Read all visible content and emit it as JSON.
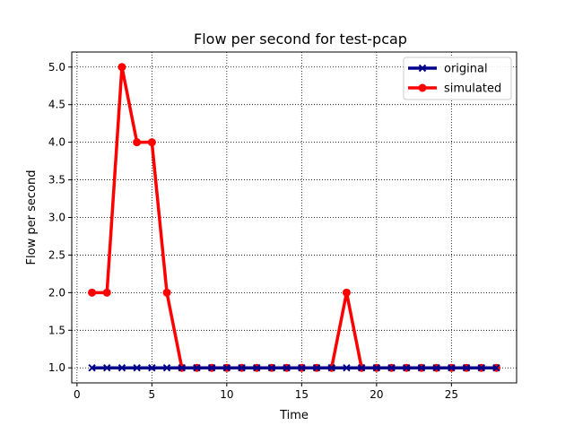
{
  "chart_data": {
    "type": "line",
    "title": "Flow per second for test-pcap",
    "xlabel": "Time",
    "ylabel": "Flow per second",
    "xlim": [
      -0.35,
      29.35
    ],
    "ylim": [
      0.8,
      5.2
    ],
    "xticks": [
      0,
      5,
      10,
      15,
      20,
      25
    ],
    "yticks": [
      1.0,
      1.5,
      2.0,
      2.5,
      3.0,
      3.5,
      4.0,
      4.5,
      5.0
    ],
    "grid": true,
    "legend_position": "top-right",
    "x": [
      1,
      2,
      3,
      4,
      5,
      6,
      7,
      8,
      9,
      10,
      11,
      12,
      13,
      14,
      15,
      16,
      17,
      18,
      19,
      20,
      21,
      22,
      23,
      24,
      25,
      26,
      27,
      28
    ],
    "series": [
      {
        "name": "original",
        "color": "#00008b",
        "marker": "x",
        "values": [
          1,
          1,
          1,
          1,
          1,
          1,
          1,
          1,
          1,
          1,
          1,
          1,
          1,
          1,
          1,
          1,
          1,
          1,
          1,
          1,
          1,
          1,
          1,
          1,
          1,
          1,
          1,
          1
        ]
      },
      {
        "name": "simulated",
        "color": "#ff0000",
        "marker": "o",
        "values": [
          2,
          2,
          5,
          4,
          4,
          2,
          1,
          1,
          1,
          1,
          1,
          1,
          1,
          1,
          1,
          1,
          1,
          2,
          1,
          1,
          1,
          1,
          1,
          1,
          1,
          1,
          1,
          1
        ]
      }
    ]
  }
}
